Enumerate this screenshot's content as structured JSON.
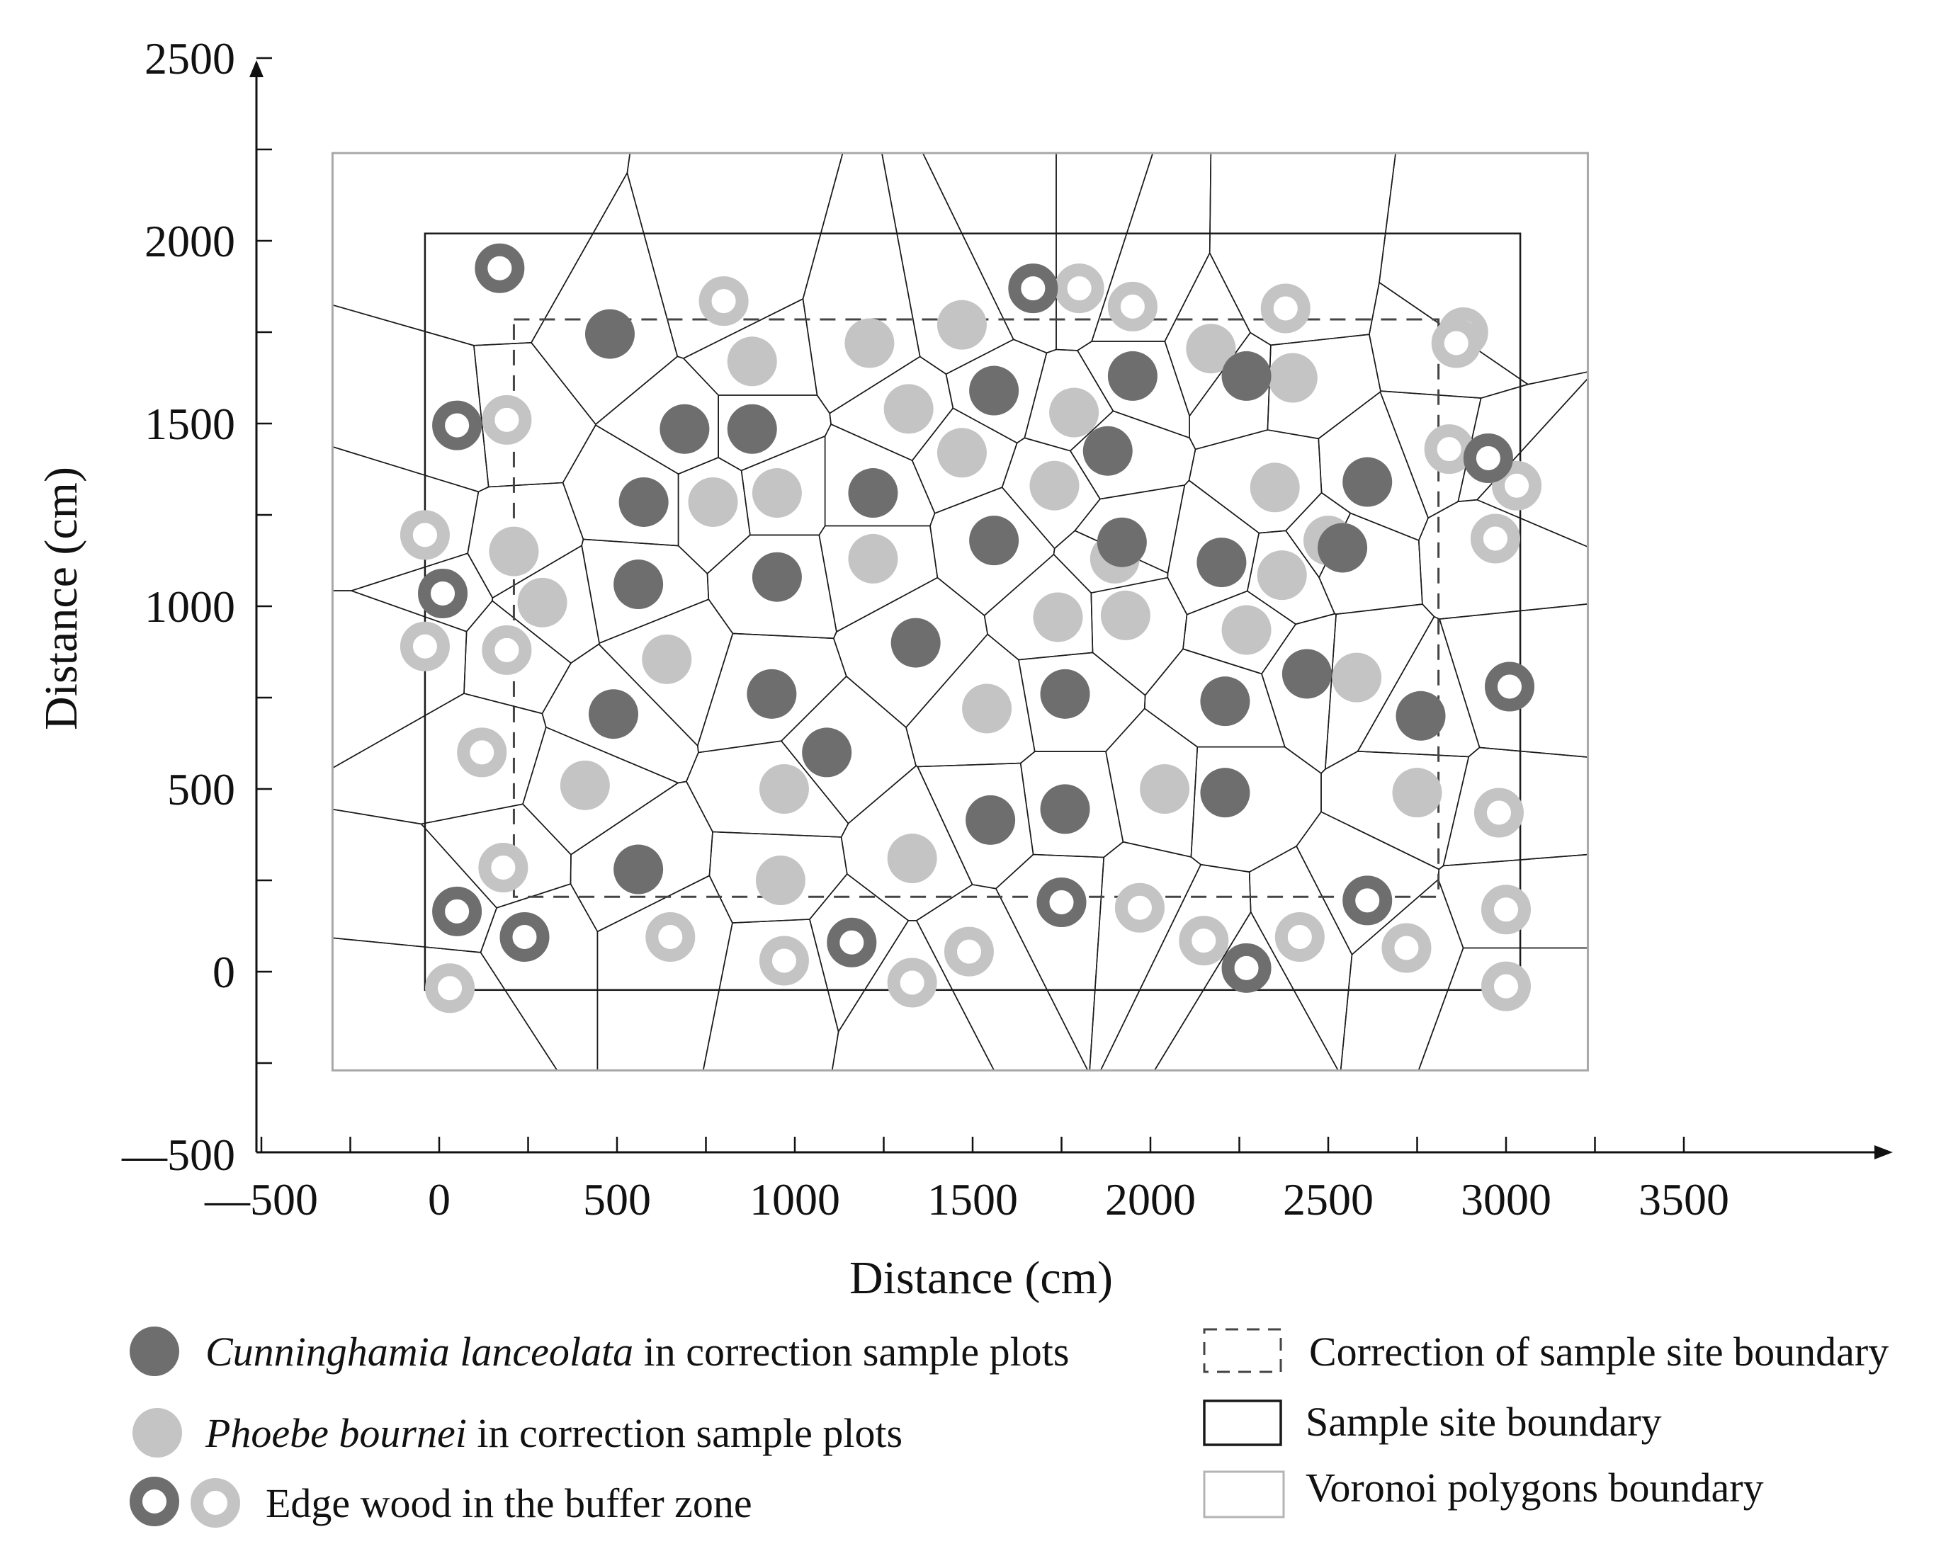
{
  "chart_data": {
    "type": "scatter",
    "xlabel": "Distance (cm)",
    "ylabel": "Distance (cm)",
    "xlim": [
      -500,
      3800
    ],
    "ylim": [
      -500,
      2500
    ],
    "x_ticks": [
      -500,
      0,
      500,
      1000,
      1500,
      2000,
      2500,
      3000,
      3500
    ],
    "y_ticks": [
      -500,
      0,
      500,
      1000,
      1500,
      2000,
      2500
    ],
    "x_tick_labels": [
      "—500",
      "0",
      "500",
      "1000",
      "1500",
      "2000",
      "2500",
      "3000",
      "3500"
    ],
    "y_tick_labels": [
      "—500",
      "0",
      "500",
      "1000",
      "1500",
      "2000",
      "2500"
    ],
    "boundaries": {
      "voronoi_extent": {
        "x": [
          -300,
          3230
        ],
        "y": [
          -270,
          2240
        ]
      },
      "sample_site": {
        "x": [
          -40,
          3040
        ],
        "y": [
          -50,
          2020
        ]
      },
      "correction": {
        "x": [
          210,
          2810
        ],
        "y": [
          205,
          1785
        ]
      }
    },
    "colors": {
      "cunninghamia": "#6e6e6e",
      "phoebe": "#c4c4c4",
      "voronoi": "#1a1a1a",
      "sample_site": "#1a1a1a",
      "correction": "#444444",
      "extent": "#a8a8a8"
    },
    "series": [
      {
        "name": "Cunninghamia lanceolata in correction sample plots",
        "points": [
          [
            480,
            1745
          ],
          [
            690,
            1485
          ],
          [
            880,
            1485
          ],
          [
            575,
            1285
          ],
          [
            560,
            1060
          ],
          [
            950,
            1080
          ],
          [
            1220,
            1310
          ],
          [
            1560,
            1590
          ],
          [
            1950,
            1630
          ],
          [
            2270,
            1630
          ],
          [
            1880,
            1425
          ],
          [
            2610,
            1340
          ],
          [
            1560,
            1180
          ],
          [
            1920,
            1175
          ],
          [
            2200,
            1120
          ],
          [
            2540,
            1160
          ],
          [
            1340,
            900
          ],
          [
            935,
            760
          ],
          [
            490,
            705
          ],
          [
            1090,
            600
          ],
          [
            1760,
            760
          ],
          [
            2210,
            740
          ],
          [
            2440,
            815
          ],
          [
            2760,
            700
          ],
          [
            1550,
            415
          ],
          [
            1760,
            445
          ],
          [
            2210,
            490
          ],
          [
            560,
            280
          ]
        ]
      },
      {
        "name": "Phoebe bournei in correction sample plots",
        "points": [
          [
            880,
            1670
          ],
          [
            1210,
            1720
          ],
          [
            1470,
            1770
          ],
          [
            2170,
            1705
          ],
          [
            2400,
            1625
          ],
          [
            1320,
            1540
          ],
          [
            1785,
            1530
          ],
          [
            1470,
            1420
          ],
          [
            1730,
            1330
          ],
          [
            2350,
            1325
          ],
          [
            1900,
            1130
          ],
          [
            2500,
            1180
          ],
          [
            2370,
            1085
          ],
          [
            210,
            1150
          ],
          [
            290,
            1010
          ],
          [
            770,
            1285
          ],
          [
            950,
            1310
          ],
          [
            1220,
            1130
          ],
          [
            1740,
            970
          ],
          [
            1930,
            975
          ],
          [
            2270,
            935
          ],
          [
            2580,
            805
          ],
          [
            640,
            855
          ],
          [
            1540,
            720
          ],
          [
            410,
            510
          ],
          [
            970,
            500
          ],
          [
            2040,
            500
          ],
          [
            2750,
            490
          ],
          [
            960,
            250
          ],
          [
            1330,
            310
          ]
        ]
      },
      {
        "name": "Edge wood in the buffer zone",
        "dark_points": [
          [
            170,
            1925
          ],
          [
            1670,
            1870
          ],
          [
            50,
            1495
          ],
          [
            2950,
            1405
          ],
          [
            10,
            1035
          ],
          [
            3010,
            780
          ],
          [
            50,
            165
          ],
          [
            240,
            95
          ],
          [
            1160,
            80
          ],
          [
            1750,
            190
          ],
          [
            2610,
            195
          ],
          [
            2270,
            10
          ]
        ],
        "light_points": [
          [
            800,
            1835
          ],
          [
            1800,
            1870
          ],
          [
            1950,
            1820
          ],
          [
            2380,
            1815
          ],
          [
            2880,
            1750
          ],
          [
            2860,
            1720
          ],
          [
            190,
            1510
          ],
          [
            2840,
            1430
          ],
          [
            3030,
            1330
          ],
          [
            -40,
            1195
          ],
          [
            2970,
            1185
          ],
          [
            -40,
            890
          ],
          [
            190,
            880
          ],
          [
            120,
            600
          ],
          [
            2980,
            435
          ],
          [
            180,
            285
          ],
          [
            650,
            95
          ],
          [
            1970,
            175
          ],
          [
            2150,
            85
          ],
          [
            2420,
            95
          ],
          [
            2720,
            65
          ],
          [
            3000,
            170
          ],
          [
            970,
            30
          ],
          [
            1490,
            55
          ],
          [
            1330,
            -30
          ],
          [
            30,
            -45
          ],
          [
            3000,
            -40
          ]
        ]
      }
    ]
  },
  "legend": {
    "cunninghamia_species": "Cunninghamia lanceolata",
    "cunninghamia_suffix": " in correction sample plots",
    "phoebe_species": "Phoebe bournei",
    "phoebe_suffix": " in correction sample plots",
    "edge": "Edge wood in the buffer zone",
    "correction_boundary": "Correction of sample site boundary",
    "sample_boundary": "Sample site boundary",
    "voronoi_boundary": "Voronoi polygons boundary"
  }
}
